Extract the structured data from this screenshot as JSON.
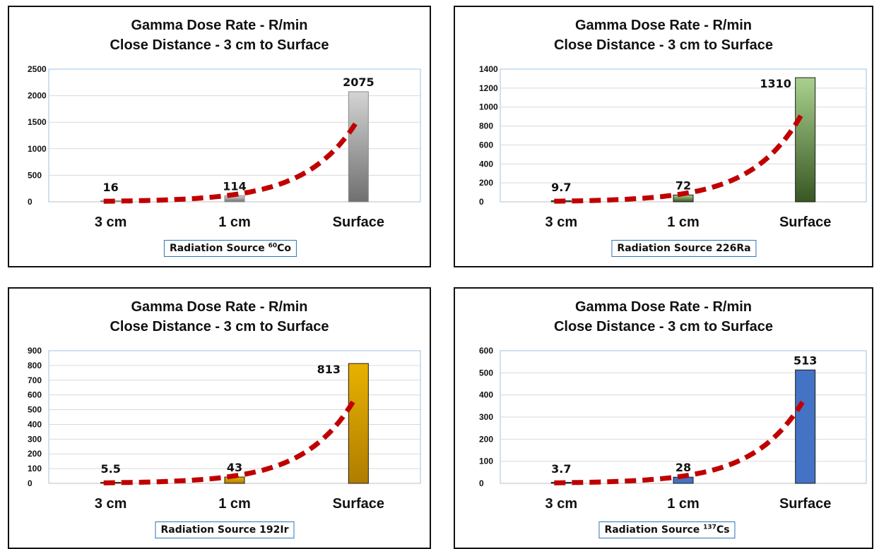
{
  "chart_data": [
    {
      "type": "bar",
      "title": "Gamma Dose Rate - R/min",
      "subtitle": "Close Distance - 3 cm to Surface",
      "categories": [
        "3 cm",
        "1 cm",
        "Surface"
      ],
      "values": [
        16,
        114,
        2075
      ],
      "data_labels": [
        "16",
        "114",
        "2075"
      ],
      "ylim": [
        0,
        2500
      ],
      "yticks": [
        "0",
        "500",
        "1000",
        "1500",
        "2000",
        "2500"
      ],
      "grid": true,
      "trendline": "exponential, dashed",
      "source_prefix": "Radiation Source ",
      "source_sup": "60",
      "source_suffix": "Co",
      "colors": {
        "bar_top": "#d4d4d4",
        "bar_bottom": "#6f6f6f",
        "bar_stroke": "#8a8a8a",
        "trend": "#c00000",
        "grid": "#d9d9d9",
        "axis": "#9dc3e6"
      }
    },
    {
      "type": "bar",
      "title": "Gamma Dose Rate - R/min",
      "subtitle": "Close Distance - 3 cm to Surface",
      "categories": [
        "3 cm",
        "1 cm",
        "Surface"
      ],
      "values": [
        9.7,
        72,
        1310
      ],
      "data_labels": [
        "9.7",
        "72",
        "1310"
      ],
      "ylim": [
        0,
        1400
      ],
      "yticks": [
        "0",
        "200",
        "400",
        "600",
        "800",
        "1000",
        "1200",
        "1400"
      ],
      "grid": true,
      "trendline": "exponential, dashed",
      "source_prefix": "Radiation Source 226Ra",
      "source_sup": "",
      "source_suffix": "",
      "colors": {
        "bar_top": "#a9d18e",
        "bar_bottom": "#385723",
        "bar_stroke": "#1a1a1a",
        "trend": "#c00000",
        "grid": "#d9d9d9",
        "axis": "#9dc3e6"
      }
    },
    {
      "type": "bar",
      "title": "Gamma Dose Rate - R/min",
      "subtitle": "Close Distance - 3 cm to Surface",
      "categories": [
        "3 cm",
        "1 cm",
        "Surface"
      ],
      "values": [
        5.5,
        43,
        813
      ],
      "data_labels": [
        "5.5",
        "43",
        "813"
      ],
      "ylim": [
        0,
        900
      ],
      "yticks": [
        "0",
        "100",
        "200",
        "300",
        "400",
        "500",
        "600",
        "700",
        "800",
        "900"
      ],
      "grid": true,
      "trendline": "exponential, dashed",
      "source_prefix": "Radiation Source 192Ir",
      "source_sup": "",
      "source_suffix": "",
      "colors": {
        "bar_top": "#e8b200",
        "bar_bottom": "#b07d00",
        "bar_stroke": "#1a1a1a",
        "trend": "#c00000",
        "grid": "#d9d9d9",
        "axis": "#9dc3e6"
      }
    },
    {
      "type": "bar",
      "title": "Gamma Dose Rate - R/min",
      "subtitle": "Close Distance - 3 cm to Surface",
      "categories": [
        "3 cm",
        "1 cm",
        "Surface"
      ],
      "values": [
        3.7,
        28,
        513
      ],
      "data_labels": [
        "3.7",
        "28",
        "513"
      ],
      "ylim": [
        0,
        600
      ],
      "yticks": [
        "0",
        "100",
        "200",
        "300",
        "400",
        "500",
        "600"
      ],
      "grid": true,
      "trendline": "exponential, dashed",
      "source_prefix": "Radiation Source ",
      "source_sup": "137",
      "source_suffix": "Cs",
      "colors": {
        "bar_top": "#4472c4",
        "bar_bottom": "#4472c4",
        "bar_stroke": "#1a1a1a",
        "trend": "#c00000",
        "grid": "#d9d9d9",
        "axis": "#9dc3e6"
      }
    }
  ]
}
